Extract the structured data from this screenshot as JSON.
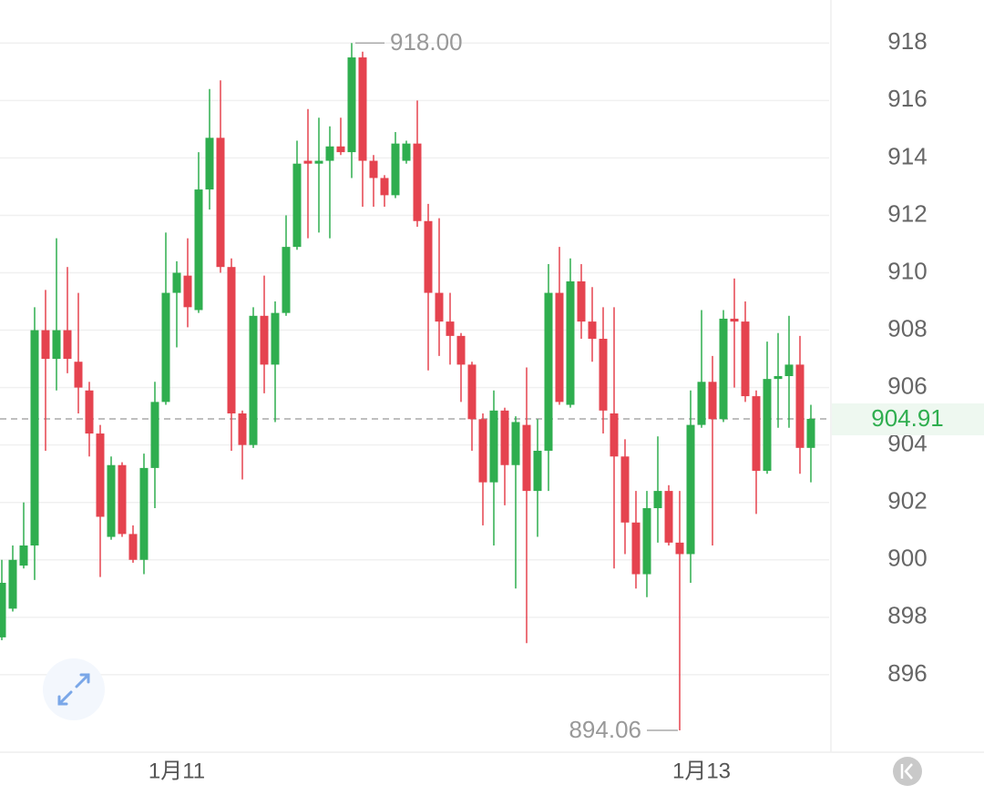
{
  "chart_data": {
    "type": "candlestick",
    "categories": [
      null,
      null,
      null,
      null,
      null,
      null,
      null,
      null,
      null,
      null,
      null,
      null,
      null,
      null,
      null,
      null,
      "1月11",
      null,
      null,
      null,
      null,
      null,
      null,
      null,
      null,
      null,
      null,
      null,
      null,
      null,
      null,
      null,
      null,
      null,
      null,
      null,
      null,
      null,
      null,
      null,
      null,
      null,
      null,
      null,
      null,
      null,
      null,
      null,
      null,
      null,
      null,
      null,
      null,
      null,
      null,
      null,
      null,
      null,
      null,
      null,
      null,
      null,
      null,
      null,
      "1月13",
      null,
      null,
      null,
      null,
      null,
      null,
      null,
      null,
      null,
      null
    ],
    "open": [
      897.3,
      898.3,
      899.8,
      900.5,
      908.0,
      907.0,
      908.0,
      906.9,
      905.9,
      904.4,
      900.8,
      903.3,
      900.9,
      900.0,
      903.2,
      905.5,
      909.3,
      909.9,
      908.7,
      912.9,
      914.7,
      910.2,
      905.1,
      904.0,
      908.5,
      906.8,
      908.6,
      910.9,
      913.9,
      913.8,
      913.9,
      914.4,
      914.2,
      917.5,
      913.9,
      913.3,
      912.7,
      913.9,
      914.5,
      911.8,
      909.3,
      908.3,
      907.8,
      906.8,
      904.9,
      902.7,
      905.2,
      903.3,
      904.7,
      902.4,
      903.8,
      909.3,
      905.4,
      909.7,
      908.3,
      907.7,
      905.1,
      903.6,
      901.3,
      899.5,
      901.8,
      902.4,
      900.6,
      900.2,
      904.7,
      906.2,
      904.9,
      908.4,
      908.3,
      905.7,
      903.1,
      906.3,
      906.4,
      906.8,
      903.9
    ],
    "high": [
      900.0,
      900.5,
      902.0,
      908.8,
      909.4,
      911.2,
      910.2,
      909.3,
      906.2,
      904.7,
      903.6,
      903.4,
      901.2,
      903.7,
      906.2,
      911.4,
      910.4,
      911.2,
      914.2,
      916.4,
      916.7,
      910.5,
      905.2,
      908.8,
      909.9,
      909.0,
      912.0,
      914.6,
      915.7,
      915.4,
      915.1,
      915.4,
      918.0,
      917.7,
      914.1,
      913.4,
      914.9,
      914.6,
      916.0,
      912.4,
      911.9,
      909.3,
      907.9,
      906.9,
      905.1,
      905.9,
      905.3,
      905.0,
      906.7,
      904.9,
      910.3,
      910.9,
      910.5,
      910.3,
      909.5,
      908.8,
      908.8,
      904.2,
      902.4,
      902.4,
      904.3,
      902.6,
      902.4,
      905.9,
      908.7,
      907.1,
      908.7,
      909.8,
      909.0,
      905.9,
      907.6,
      907.9,
      908.5,
      907.8,
      905.4
    ],
    "low": [
      897.2,
      898.2,
      899.7,
      899.3,
      903.8,
      905.9,
      906.5,
      905.1,
      903.6,
      899.4,
      900.7,
      900.8,
      899.9,
      899.5,
      901.8,
      905.4,
      907.4,
      908.1,
      908.6,
      912.2,
      910.0,
      903.8,
      902.8,
      903.9,
      905.8,
      904.8,
      908.5,
      910.8,
      911.2,
      911.4,
      911.2,
      914.1,
      913.3,
      912.3,
      912.3,
      912.3,
      912.6,
      913.8,
      911.6,
      906.6,
      907.1,
      906.8,
      905.5,
      903.8,
      901.2,
      900.5,
      901.9,
      899.0,
      897.1,
      900.8,
      902.4,
      905.4,
      905.3,
      907.7,
      906.9,
      904.4,
      899.7,
      900.2,
      899.0,
      898.7,
      900.6,
      900.5,
      894.06,
      899.2,
      904.6,
      900.5,
      904.8,
      906.0,
      905.5,
      901.6,
      903.0,
      904.6,
      904.6,
      903.0,
      902.7
    ],
    "close": [
      899.2,
      900.0,
      900.5,
      908.0,
      907.0,
      908.0,
      907.0,
      906.0,
      904.4,
      901.5,
      903.3,
      900.9,
      900.0,
      903.2,
      905.5,
      909.3,
      910.0,
      908.8,
      912.9,
      914.7,
      910.2,
      905.1,
      904.0,
      908.5,
      906.8,
      908.6,
      910.9,
      913.8,
      913.8,
      913.9,
      914.4,
      914.2,
      917.5,
      913.9,
      913.3,
      912.7,
      914.5,
      914.5,
      911.8,
      909.3,
      908.3,
      907.8,
      906.8,
      904.9,
      902.7,
      905.2,
      903.3,
      904.8,
      902.4,
      903.8,
      909.3,
      905.5,
      909.7,
      908.3,
      907.7,
      905.2,
      903.6,
      901.3,
      899.5,
      901.8,
      902.4,
      900.6,
      900.2,
      904.7,
      906.2,
      904.9,
      908.4,
      908.3,
      905.7,
      903.1,
      906.3,
      906.4,
      906.8,
      903.9,
      904.91
    ],
    "up_color": "#2fae4f",
    "down_color": "#e5434f",
    "ylim": [
      893.3,
      919.5
    ],
    "yticks": [
      896,
      898,
      900,
      902,
      904,
      906,
      908,
      910,
      912,
      914,
      916,
      918
    ],
    "grid": true,
    "high_label": {
      "value": 918.0,
      "label": "918.00"
    },
    "low_label": {
      "value": 894.06,
      "label": "894.06"
    },
    "last_price": {
      "value": 904.91,
      "label": "904.91"
    }
  }
}
